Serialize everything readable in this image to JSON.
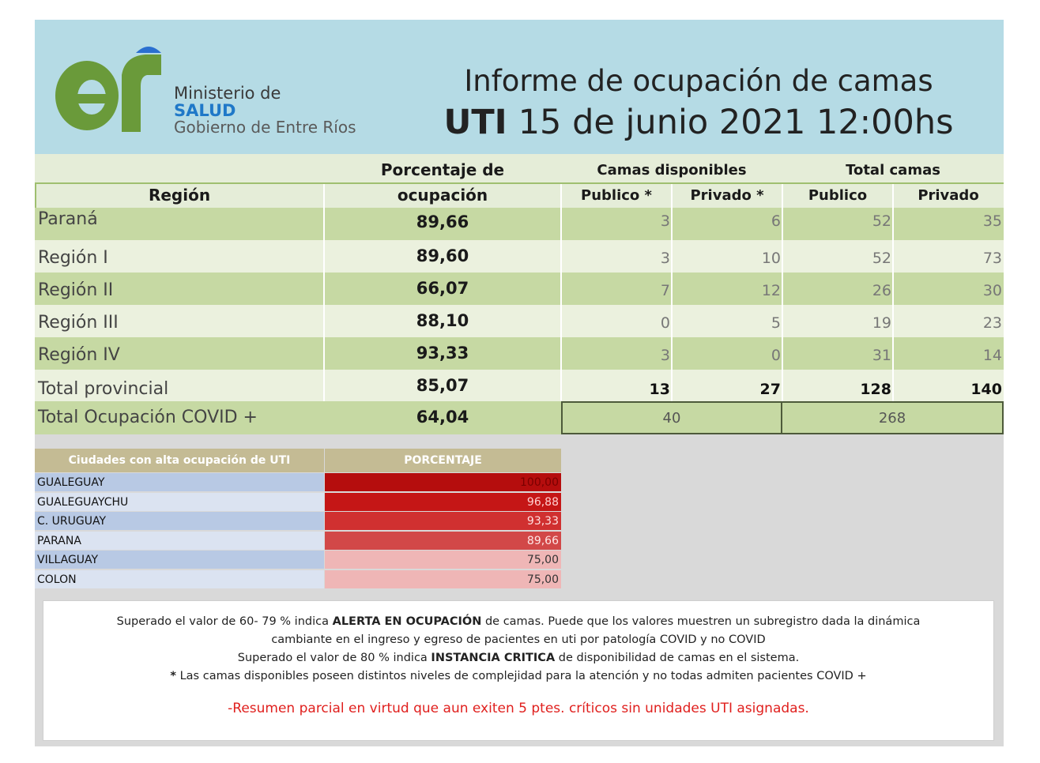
{
  "header": {
    "ministry_line1": "Ministerio de",
    "ministry_line2": "SALUD",
    "ministry_line3": "Gobierno de Entre Ríos",
    "title_line1": "Informe de ocupación de camas",
    "title_uti": "UTI",
    "title_date": "15 de junio 2021 12:00hs",
    "colors": {
      "header_bg": "#b5dbe5",
      "logo_green": "#6a9a3a",
      "logo_blue": "#2a6fd0"
    }
  },
  "table": {
    "col_region": "Región",
    "col_pct_line1": "Porcentaje de",
    "col_pct_line2": "ocupación",
    "col_camas_disp": "Camas disponibles",
    "col_total_camas": "Total camas",
    "sub_publico_disp": "Publico *",
    "sub_privado_disp": "Privado *",
    "sub_publico_total": "Publico",
    "sub_privado_total": "Privado",
    "rows": [
      {
        "region": "Paraná",
        "pct": "89,66",
        "disp_pub": "3",
        "disp_priv": "6",
        "tot_pub": "52",
        "tot_priv": "35"
      },
      {
        "region": "Región I",
        "pct": "89,60",
        "disp_pub": "3",
        "disp_priv": "10",
        "tot_pub": "52",
        "tot_priv": "73"
      },
      {
        "region": "Región II",
        "pct": "66,07",
        "disp_pub": "7",
        "disp_priv": "12",
        "tot_pub": "26",
        "tot_priv": "30"
      },
      {
        "region": "Región III",
        "pct": "88,10",
        "disp_pub": "0",
        "disp_priv": "5",
        "tot_pub": "19",
        "tot_priv": "23"
      },
      {
        "region": "Región IV",
        "pct": "93,33",
        "disp_pub": "3",
        "disp_priv": "0",
        "tot_pub": "31",
        "tot_priv": "14"
      },
      {
        "region": "Total provincial",
        "pct": "85,07",
        "disp_pub": "13",
        "disp_priv": "27",
        "tot_pub": "128",
        "tot_priv": "140"
      }
    ],
    "covid": {
      "label": "Total Ocupación COVID +",
      "pct": "64,04",
      "disp_total": "40",
      "camas_total": "268"
    }
  },
  "cities": {
    "header_name": "Ciudades con alta ocupación de UTI",
    "header_pct": "PORCENTAJE",
    "rows": [
      {
        "name": "GUALEGUAY",
        "value": "100,00",
        "color": "#b50d0d",
        "text_color": "#7a0000"
      },
      {
        "name": "GUALEGUAYCHU",
        "value": "96,88",
        "color": "#c51616",
        "text_color": "#ffd0d0"
      },
      {
        "name": "C. URUGUAY",
        "value": "93,33",
        "color": "#d03030",
        "text_color": "#ffe0e0"
      },
      {
        "name": "PARANA",
        "value": "89,66",
        "color": "#d24848",
        "text_color": "#ffe6e6"
      },
      {
        "name": "VILLAGUAY",
        "value": "75,00",
        "color": "#efb6b6",
        "text_color": "#333333"
      },
      {
        "name": "COLON",
        "value": "75,00",
        "color": "#efb6b6",
        "text_color": "#333333"
      }
    ]
  },
  "notes": {
    "line1_pre": "Superado el valor de 60- 79 %  indica ",
    "line1_bold": "ALERTA EN OCUPACIÓN",
    "line1_post": " de camas. Puede que los valores muestren un subregistro dada la dinámica",
    "line2": "cambiante en el ingreso y egreso de pacientes en uti por patología COVID y no COVID",
    "line3_pre": "Superado el valor de 80 % indica ",
    "line3_bold": "INSTANCIA CRITICA",
    "line3_post": " de disponibilidad de camas en el sistema.",
    "line4_star": "*",
    "line4": " Las camas disponibles poseen distintos niveles de complejidad para la atención y no todas admiten pacientes COVID +",
    "red_line": "-Resumen parcial en virtud que aun exiten  5 ptes. críticos sin unidades UTI asignadas."
  }
}
